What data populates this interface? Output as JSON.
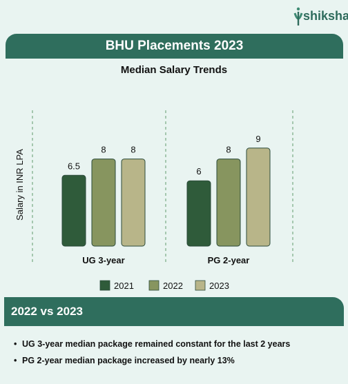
{
  "brand": {
    "name": "shiksha"
  },
  "banner": {
    "title": "BHU Placements 2023"
  },
  "chart_data": {
    "type": "bar",
    "title": "Median Salary Trends",
    "ylabel": "Salary in INR LPA",
    "xlabel": "",
    "categories": [
      "UG 3-year",
      "PG 2-year"
    ],
    "series": [
      {
        "name": "2021",
        "values": [
          6.5,
          6
        ],
        "color": "#2f5b3a"
      },
      {
        "name": "2022",
        "values": [
          8,
          8
        ],
        "color": "#87955f"
      },
      {
        "name": "2023",
        "values": [
          8,
          9
        ],
        "color": "#b8b589"
      }
    ],
    "data_labels": [
      [
        "6.5",
        "8",
        "8"
      ],
      [
        "6",
        "8",
        "9"
      ]
    ],
    "legend_position": "bottom",
    "grid": false
  },
  "section": {
    "title": "2022 vs 2023",
    "bullets": [
      "UG 3-year median package remained constant for the last 2 years",
      "PG 2-year median package increased by nearly 13%"
    ]
  },
  "colors": {
    "accent": "#2f6e5d",
    "background": "#e9f4f1"
  }
}
